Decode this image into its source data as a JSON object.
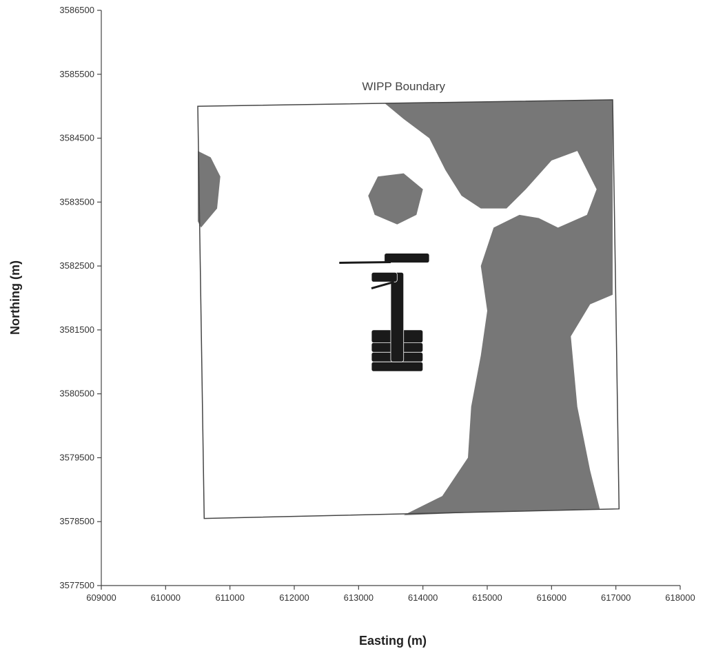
{
  "chart_data": {
    "type": "map",
    "xlabel": "Easting (m)",
    "ylabel": "Northing (m)",
    "xlim": [
      609000,
      618000
    ],
    "ylim": [
      3577500,
      3586500
    ],
    "x_ticks": [
      609000,
      610000,
      611000,
      612000,
      613000,
      614000,
      615000,
      616000,
      617000,
      618000
    ],
    "y_ticks": [
      3577500,
      3578500,
      3579500,
      3580500,
      3581500,
      3582500,
      3583500,
      3584500,
      3585500,
      3586500
    ],
    "x_tick_labels": [
      "609000",
      "610000",
      "611000",
      "612000",
      "613000",
      "614000",
      "615000",
      "616000",
      "617000",
      "618000"
    ],
    "y_tick_labels": [
      "3577500",
      "3578500",
      "3579500",
      "3580500",
      "3581500",
      "3582500",
      "3583500",
      "3584500",
      "3585500",
      "3586500"
    ],
    "annotation": "WIPP Boundary",
    "colors": {
      "shaded_region": "#777777",
      "repository": "#1a1a1a",
      "boundary": "#444444"
    },
    "boundary": [
      [
        610500,
        3585000
      ],
      [
        616950,
        3585100
      ],
      [
        617050,
        3578700
      ],
      [
        610600,
        3578550
      ]
    ],
    "shaded_regions": [
      [
        [
          613400,
          3585050
        ],
        [
          616950,
          3585100
        ],
        [
          616950,
          3582050
        ],
        [
          616600,
          3581900
        ],
        [
          616300,
          3581400
        ],
        [
          616400,
          3580300
        ],
        [
          616600,
          3579300
        ],
        [
          616750,
          3578700
        ],
        [
          615000,
          3578650
        ],
        [
          613700,
          3578600
        ],
        [
          614300,
          3578900
        ],
        [
          614700,
          3579500
        ],
        [
          614750,
          3580300
        ],
        [
          614900,
          3581100
        ],
        [
          615000,
          3581800
        ],
        [
          614900,
          3582500
        ],
        [
          615100,
          3583100
        ],
        [
          615500,
          3583300
        ],
        [
          615800,
          3583250
        ],
        [
          616100,
          3583100
        ],
        [
          616550,
          3583300
        ],
        [
          616700,
          3583700
        ],
        [
          616400,
          3584300
        ],
        [
          616000,
          3584150
        ],
        [
          615600,
          3583700
        ],
        [
          615300,
          3583400
        ],
        [
          614900,
          3583400
        ],
        [
          614600,
          3583600
        ],
        [
          614350,
          3584000
        ],
        [
          614100,
          3584500
        ],
        [
          613700,
          3584800
        ]
      ],
      [
        [
          610500,
          3584300
        ],
        [
          610700,
          3584200
        ],
        [
          610850,
          3583900
        ],
        [
          610800,
          3583400
        ],
        [
          610550,
          3583100
        ],
        [
          610500,
          3583200
        ]
      ],
      [
        [
          613300,
          3583900
        ],
        [
          613700,
          3583950
        ],
        [
          614000,
          3583700
        ],
        [
          613900,
          3583300
        ],
        [
          613600,
          3583150
        ],
        [
          613250,
          3583300
        ],
        [
          613150,
          3583600
        ]
      ]
    ],
    "repository_blocks": [
      [
        613200,
        3581300,
        614000,
        3581500
      ],
      [
        613200,
        3581150,
        614000,
        3581300
      ],
      [
        613200,
        3581000,
        614000,
        3581150
      ],
      [
        613200,
        3580850,
        614000,
        3581000
      ],
      [
        613500,
        3581000,
        613700,
        3582400
      ],
      [
        613200,
        3582250,
        613600,
        3582400
      ],
      [
        613400,
        3582550,
        614100,
        3582700
      ]
    ],
    "repository_lines": [
      [
        [
          612700,
          3582550
        ],
        [
          613500,
          3582560
        ]
      ],
      [
        [
          613200,
          3582150
        ],
        [
          613550,
          3582250
        ]
      ]
    ]
  }
}
